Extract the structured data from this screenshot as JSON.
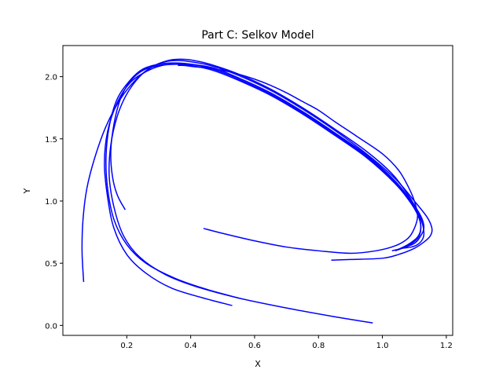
{
  "chart_data": {
    "type": "line",
    "title": "Part C: Selkov Model",
    "xlabel": "X",
    "ylabel": "Y",
    "xlim": [
      0.0,
      1.22
    ],
    "ylim": [
      -0.08,
      2.25
    ],
    "xticks": [
      0.2,
      0.4,
      0.6,
      0.8,
      1.0,
      1.2
    ],
    "xtick_labels": [
      "0.2",
      "0.4",
      "0.6",
      "0.8",
      "1.0",
      "1.2"
    ],
    "yticks": [
      0.0,
      0.5,
      1.0,
      1.5,
      2.0
    ],
    "ytick_labels": [
      "0.0",
      "0.5",
      "1.0",
      "1.5",
      "2.0"
    ],
    "grid": false,
    "line_color": "#0000ff",
    "series": [
      {
        "x": [
          0.065,
          0.06,
          0.063,
          0.075,
          0.1,
          0.135,
          0.18,
          0.23,
          0.28,
          0.33,
          0.37,
          0.41,
          0.46,
          0.55,
          0.65,
          0.75,
          0.85,
          0.95,
          1.03,
          1.08,
          1.11,
          1.125,
          1.13,
          1.125,
          1.11,
          1.09,
          1.06
        ],
        "y": [
          0.35,
          0.6,
          0.85,
          1.1,
          1.35,
          1.6,
          1.82,
          1.98,
          2.08,
          2.13,
          2.14,
          2.13,
          2.1,
          2.02,
          1.9,
          1.75,
          1.58,
          1.4,
          1.22,
          1.05,
          0.92,
          0.82,
          0.74,
          0.69,
          0.65,
          0.63,
          0.62
        ]
      },
      {
        "x": [
          0.97,
          0.85,
          0.7,
          0.55,
          0.42,
          0.32,
          0.24,
          0.19,
          0.16,
          0.145,
          0.15,
          0.17,
          0.2,
          0.24,
          0.28,
          0.32,
          0.36,
          0.4,
          0.46,
          0.55,
          0.65,
          0.75,
          0.85,
          0.95,
          1.04,
          1.1,
          1.14,
          1.155,
          1.15,
          1.13,
          1.1,
          1.05,
          1.0,
          0.9,
          0.84
        ],
        "y": [
          0.02,
          0.07,
          0.14,
          0.22,
          0.31,
          0.41,
          0.55,
          0.72,
          0.95,
          1.2,
          1.45,
          1.68,
          1.86,
          2.0,
          2.08,
          2.12,
          2.13,
          2.12,
          2.09,
          2.01,
          1.89,
          1.74,
          1.57,
          1.38,
          1.18,
          1.0,
          0.87,
          0.78,
          0.72,
          0.67,
          0.62,
          0.57,
          0.54,
          0.53,
          0.525
        ]
      },
      {
        "x": [
          0.55,
          0.45,
          0.35,
          0.26,
          0.2,
          0.16,
          0.14,
          0.135,
          0.145,
          0.17,
          0.21,
          0.25,
          0.3,
          0.35,
          0.4,
          0.47,
          0.55,
          0.65,
          0.75,
          0.85,
          0.95,
          1.04,
          1.09,
          1.12,
          1.13,
          1.12,
          1.1,
          1.06,
          1.03
        ],
        "y": [
          0.22,
          0.29,
          0.38,
          0.5,
          0.65,
          0.85,
          1.1,
          1.35,
          1.6,
          1.82,
          1.97,
          2.06,
          2.1,
          2.11,
          2.1,
          2.07,
          1.99,
          1.87,
          1.72,
          1.55,
          1.37,
          1.16,
          1.0,
          0.88,
          0.79,
          0.72,
          0.66,
          0.62,
          0.6
        ]
      },
      {
        "x": [
          0.53,
          0.44,
          0.34,
          0.26,
          0.2,
          0.16,
          0.14,
          0.13,
          0.14,
          0.17,
          0.21,
          0.26,
          0.31,
          0.36,
          0.4,
          0.47,
          0.55,
          0.65,
          0.75,
          0.85,
          0.95,
          1.04,
          1.09,
          1.115,
          1.12,
          1.11,
          1.08,
          1.04
        ],
        "y": [
          0.16,
          0.22,
          0.3,
          0.42,
          0.57,
          0.78,
          1.03,
          1.3,
          1.56,
          1.79,
          1.95,
          2.04,
          2.09,
          2.1,
          2.1,
          2.06,
          1.98,
          1.86,
          1.71,
          1.54,
          1.36,
          1.15,
          0.99,
          0.87,
          0.78,
          0.71,
          0.65,
          0.6
        ]
      },
      {
        "x": [
          0.195,
          0.17,
          0.155,
          0.15,
          0.16,
          0.18,
          0.21,
          0.25,
          0.3,
          0.35,
          0.4,
          0.47,
          0.55,
          0.65,
          0.75,
          0.85,
          0.95,
          1.04,
          1.09,
          1.115,
          1.12,
          1.11,
          1.08,
          1.04
        ],
        "y": [
          0.93,
          1.05,
          1.2,
          1.4,
          1.62,
          1.82,
          1.96,
          2.05,
          2.09,
          2.1,
          2.09,
          2.05,
          1.97,
          1.85,
          1.7,
          1.53,
          1.35,
          1.14,
          0.98,
          0.86,
          0.77,
          0.7,
          0.64,
          0.6
        ]
      },
      {
        "x": [
          0.44,
          0.5,
          0.6,
          0.7,
          0.8,
          0.9,
          0.98,
          1.04,
          1.08,
          1.1,
          1.11,
          1.1,
          1.08,
          1.05,
          1.0,
          0.92,
          0.85,
          0.8,
          0.75,
          0.7,
          0.65,
          0.6,
          0.55,
          0.5,
          0.45,
          0.41,
          0.38,
          0.36
        ],
        "y": [
          0.78,
          0.74,
          0.68,
          0.63,
          0.6,
          0.58,
          0.6,
          0.64,
          0.7,
          0.78,
          0.88,
          1.0,
          1.12,
          1.25,
          1.38,
          1.52,
          1.64,
          1.73,
          1.8,
          1.87,
          1.93,
          1.98,
          2.02,
          2.05,
          2.07,
          2.08,
          2.09,
          2.09
        ]
      }
    ]
  }
}
